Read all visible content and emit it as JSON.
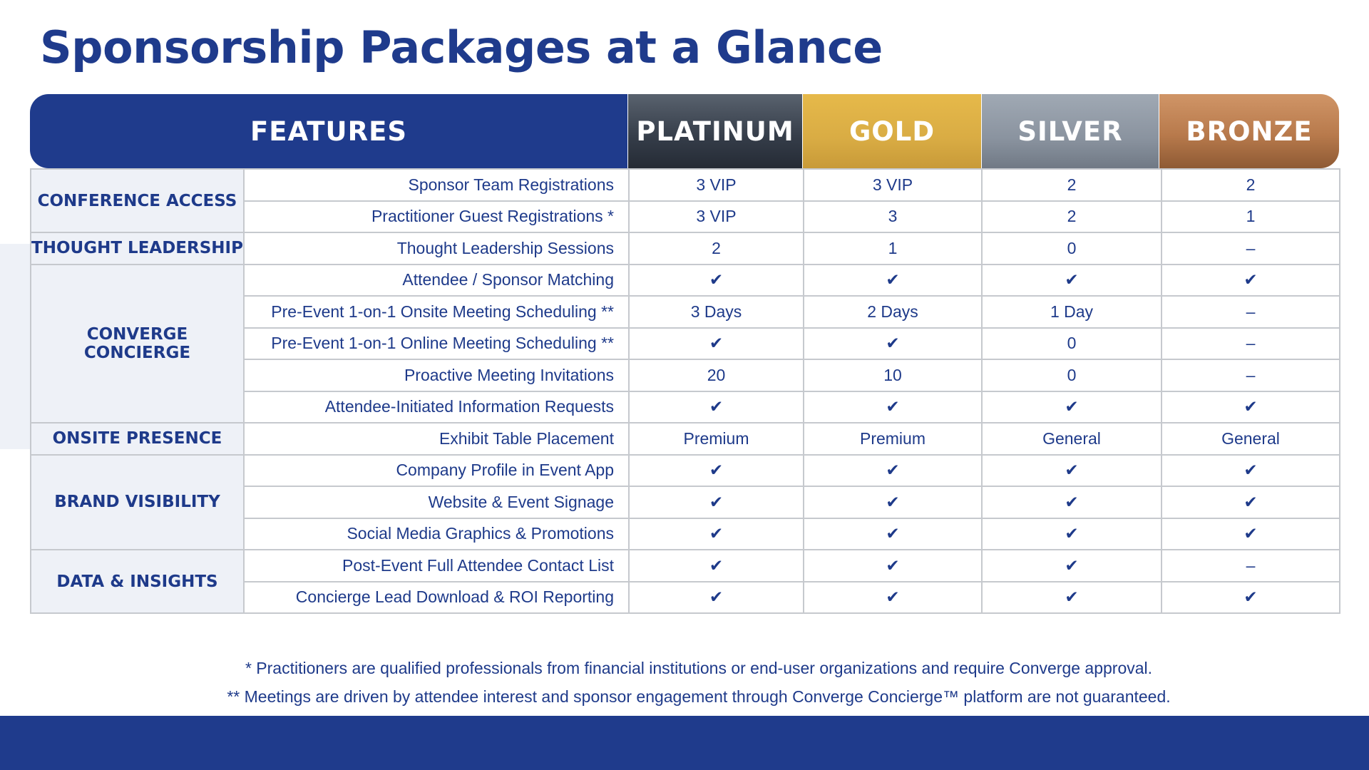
{
  "title": "Sponsorship Packages at a Glance",
  "headers": {
    "features": "FEATURES",
    "platinum": "PLATINUM",
    "gold": "GOLD",
    "silver": "SILVER",
    "bronze": "BRONZE"
  },
  "categories": {
    "conference_access": "CONFERENCE ACCESS",
    "thought_leadership": "THOUGHT LEADERSHIP",
    "converge_concierge": "CONVERGE CONCIERGE",
    "onsite_presence": "ONSITE PRESENCE",
    "brand_visibility": "BRAND VISIBILITY",
    "data_insights": "DATA & INSIGHTS"
  },
  "rows": [
    {
      "feature": "Sponsor Team Registrations",
      "platinum": "3 VIP",
      "gold": "3 VIP",
      "silver": "2",
      "bronze": "2"
    },
    {
      "feature": "Practitioner Guest Registrations *",
      "platinum": "3 VIP",
      "gold": "3",
      "silver": "2",
      "bronze": "1"
    },
    {
      "feature": "Thought Leadership Sessions",
      "platinum": "2",
      "gold": "1",
      "silver": "0",
      "bronze": "–"
    },
    {
      "feature": "Attendee / Sponsor Matching",
      "platinum": "✔",
      "gold": "✔",
      "silver": "✔",
      "bronze": "✔"
    },
    {
      "feature": "Pre-Event 1-on-1 Onsite Meeting Scheduling **",
      "platinum": "3 Days",
      "gold": "2 Days",
      "silver": "1 Day",
      "bronze": "–"
    },
    {
      "feature": "Pre-Event 1-on-1 Online Meeting Scheduling **",
      "platinum": "✔",
      "gold": "✔",
      "silver": "0",
      "bronze": "–"
    },
    {
      "feature": "Proactive Meeting Invitations",
      "platinum": "20",
      "gold": "10",
      "silver": "0",
      "bronze": "–"
    },
    {
      "feature": "Attendee-Initiated Information Requests",
      "platinum": "✔",
      "gold": "✔",
      "silver": "✔",
      "bronze": "✔"
    },
    {
      "feature": "Exhibit Table Placement",
      "platinum": "Premium",
      "gold": "Premium",
      "silver": "General",
      "bronze": "General"
    },
    {
      "feature": "Company Profile in Event App",
      "platinum": "✔",
      "gold": "✔",
      "silver": "✔",
      "bronze": "✔"
    },
    {
      "feature": "Website & Event Signage",
      "platinum": "✔",
      "gold": "✔",
      "silver": "✔",
      "bronze": "✔"
    },
    {
      "feature": "Social Media Graphics & Promotions",
      "platinum": "✔",
      "gold": "✔",
      "silver": "✔",
      "bronze": "✔"
    },
    {
      "feature": "Post-Event Full Attendee Contact List",
      "platinum": "✔",
      "gold": "✔",
      "silver": "✔",
      "bronze": "–"
    },
    {
      "feature": "Concierge Lead Download & ROI Reporting",
      "platinum": "✔",
      "gold": "✔",
      "silver": "✔",
      "bronze": "✔"
    }
  ],
  "notes": {
    "note1": "* Practitioners are qualified professionals from financial institutions or end-user organizations and require Converge approval.",
    "note2": "** Meetings are driven by attendee interest and sponsor engagement through Converge Concierge™ platform are not guaranteed."
  },
  "colors": {
    "brand_navy": "#1f3b8c",
    "platinum": "#343c48",
    "gold": "#d9ac44",
    "silver": "#8a939f",
    "bronze": "#b87a4c",
    "category_bg": "#eef1f7"
  }
}
